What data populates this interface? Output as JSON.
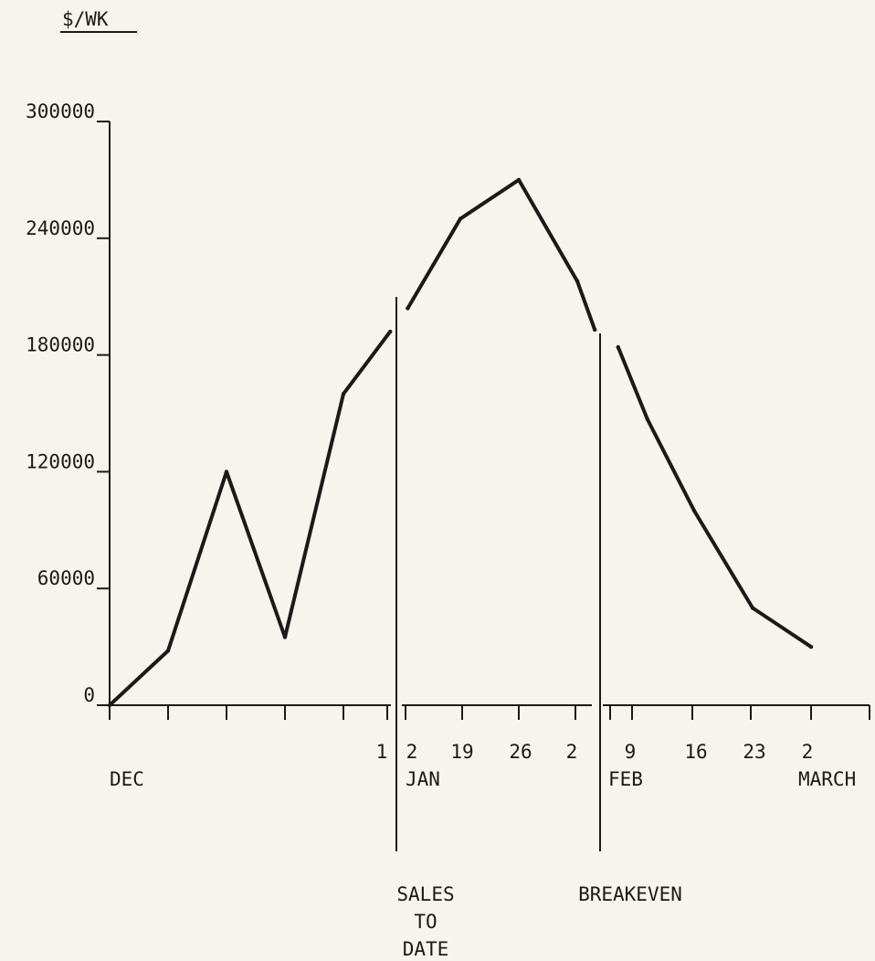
{
  "chart_data": {
    "type": "line",
    "ylabel": "$/WK",
    "ylim": [
      0,
      300000
    ],
    "yticks": [
      0,
      60000,
      120000,
      180000,
      240000,
      300000
    ],
    "ytick_labels": [
      "0",
      "60000",
      "120000",
      "180000",
      "240000",
      "300000"
    ],
    "grid": false,
    "x_tick_labels": [
      "1",
      "2",
      "19",
      "26",
      "2",
      "9",
      "16",
      "23",
      "2"
    ],
    "month_labels": [
      "DEC",
      "JAN",
      "FEB",
      "MARCH"
    ],
    "series": [
      {
        "segment": 1,
        "points": [
          {
            "week": 0,
            "value": 0
          },
          {
            "week": 1,
            "value": 28000
          },
          {
            "week": 2,
            "value": 120000
          },
          {
            "week": 3,
            "value": 35000
          },
          {
            "week": 4,
            "value": 160000
          },
          {
            "week": 4.8,
            "value": 192000
          }
        ]
      },
      {
        "segment": 2,
        "points": [
          {
            "week": 5.1,
            "value": 204000
          },
          {
            "week": 6,
            "value": 250000
          },
          {
            "week": 7,
            "value": 270000
          },
          {
            "week": 8,
            "value": 218000
          },
          {
            "week": 8.3,
            "value": 193000
          }
        ]
      },
      {
        "segment": 3,
        "points": [
          {
            "week": 8.7,
            "value": 184000
          },
          {
            "week": 9.2,
            "value": 147000
          },
          {
            "week": 10,
            "value": 100000
          },
          {
            "week": 11,
            "value": 50000
          },
          {
            "week": 12,
            "value": 30000
          }
        ]
      }
    ],
    "annotations": [
      {
        "label_lines": [
          "SALES",
          "TO",
          "DATE"
        ],
        "at_week": 4.95
      },
      {
        "label_lines": [
          "BREAKEVEN"
        ],
        "at_week": 8.5
      }
    ]
  }
}
